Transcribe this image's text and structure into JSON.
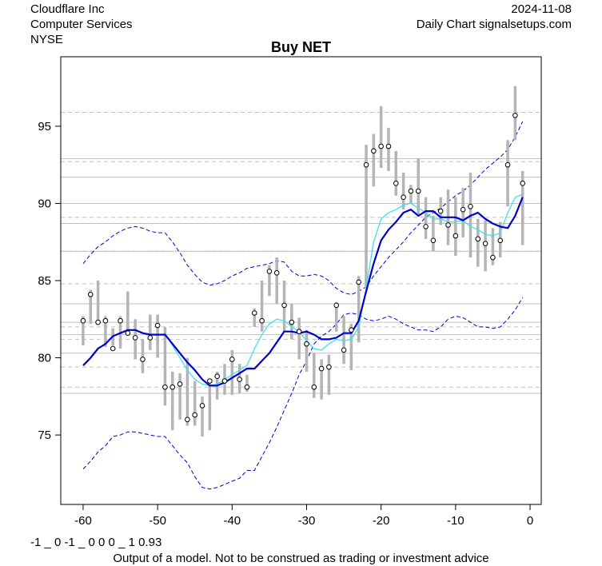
{
  "header": {
    "company": "Cloudflare Inc",
    "sector": "Computer Services",
    "exchange": "NYSE",
    "date": "2024-11-08",
    "source": "Daily Chart signalsetups.com"
  },
  "footer": {
    "code": "-1 _ 0 -1 _ 0 0 0 _ 1 0.93",
    "disclaimer": "Output of a model. Not to be construed as trading or investment advice"
  },
  "colors": {
    "bar": "#b4b4b4",
    "ma_slow": "#0000cd",
    "ma_fast": "#40e0ee",
    "band": "#0000cd",
    "grid": "#c0c0c0"
  },
  "chart_data": {
    "type": "line",
    "title": "Buy NET",
    "xlabel": "",
    "ylabel": "",
    "xlim": [
      -63,
      1.5
    ],
    "ylim": [
      70.5,
      99.5
    ],
    "x_ticks": [
      -60,
      -50,
      -40,
      -30,
      -20,
      -10,
      0
    ],
    "y_ticks": [
      75,
      80,
      85,
      90,
      95
    ],
    "h_solid": [
      77.7,
      80.3,
      81.5,
      82.3,
      83.5,
      86.9,
      88.7,
      90.0,
      91.7,
      92.9
    ],
    "h_dashed": [
      78.1,
      79.4,
      81.2,
      82.0,
      84.8,
      86.9,
      89.1,
      92.7,
      95.9
    ],
    "bars": {
      "x": [
        -60,
        -59,
        -58,
        -57,
        -56,
        -55,
        -54,
        -53,
        -52,
        -51,
        -50,
        -49,
        -48,
        -47,
        -46,
        -45,
        -44,
        -43,
        -42,
        -41,
        -40,
        -39,
        -38,
        -37,
        -36,
        -35,
        -34,
        -33,
        -32,
        -31,
        -30,
        -29,
        -28,
        -27,
        -26,
        -25,
        -24,
        -23,
        -22,
        -21,
        -20,
        -19,
        -18,
        -17,
        -16,
        -15,
        -14,
        -13,
        -12,
        -11,
        -10,
        -9,
        -8,
        -7,
        -6,
        -5,
        -4,
        -3,
        -2,
        -1
      ],
      "high": [
        82.7,
        84.4,
        85.0,
        82.7,
        81.9,
        82.7,
        84.3,
        82.5,
        81.2,
        82.8,
        82.8,
        82.0,
        79.1,
        79.0,
        80.0,
        78.5,
        77.5,
        78.6,
        79.1,
        79.6,
        80.5,
        79.6,
        78.9,
        83.2,
        85.0,
        86.0,
        86.5,
        85.0,
        83.5,
        82.6,
        81.8,
        80.3,
        79.9,
        80.2,
        83.6,
        82.7,
        82.2,
        85.3,
        93.8,
        94.5,
        96.3,
        94.9,
        93.4,
        92.0,
        91.2,
        92.9,
        90.4,
        89.2,
        90.4,
        90.9,
        90.4,
        91.0,
        92.0,
        89.0,
        88.9,
        88.4,
        88.8,
        94.1,
        97.6,
        92.1
      ],
      "low": [
        80.8,
        82.2,
        82.3,
        80.7,
        80.8,
        80.6,
        81.7,
        79.9,
        79.0,
        80.5,
        80.0,
        76.9,
        75.3,
        76.0,
        75.6,
        75.6,
        74.9,
        75.3,
        77.3,
        77.6,
        77.6,
        77.7,
        77.8,
        82.0,
        81.7,
        84.0,
        83.5,
        81.7,
        81.2,
        79.9,
        79.1,
        77.4,
        77.3,
        77.6,
        81.7,
        79.6,
        79.2,
        81.0,
        84.5,
        91.1,
        92.3,
        92.1,
        90.5,
        89.6,
        90.0,
        89.3,
        87.7,
        86.9,
        88.6,
        87.3,
        86.6,
        87.8,
        86.5,
        85.9,
        85.6,
        86.0,
        86.5,
        89.8,
        94.1,
        87.3
      ],
      "close": [
        82.4,
        84.1,
        82.3,
        82.4,
        80.6,
        82.4,
        81.6,
        81.3,
        79.9,
        81.3,
        82.1,
        78.1,
        78.1,
        78.3,
        76.0,
        76.3,
        76.9,
        78.5,
        78.8,
        78.5,
        79.9,
        78.6,
        78.1,
        82.9,
        82.4,
        85.6,
        85.5,
        83.4,
        82.3,
        81.7,
        80.9,
        78.1,
        79.3,
        79.4,
        83.4,
        80.5,
        81.8,
        84.9,
        92.5,
        93.4,
        93.7,
        93.7,
        91.3,
        90.4,
        90.8,
        90.8,
        88.5,
        87.6,
        89.5,
        88.6,
        87.9,
        89.6,
        89.8,
        87.7,
        87.4,
        86.5,
        87.6,
        92.5,
        95.7,
        91.3
      ]
    },
    "series": [
      {
        "name": "slow_ma",
        "values": [
          79.5,
          80.0,
          80.6,
          80.9,
          81.4,
          81.6,
          81.8,
          81.8,
          81.6,
          81.5,
          81.5,
          81.5,
          80.9,
          80.3,
          79.7,
          79.2,
          78.6,
          78.2,
          78.2,
          78.4,
          78.7,
          79.0,
          79.3,
          79.3,
          79.8,
          80.3,
          81.0,
          81.7,
          81.7,
          81.6,
          81.7,
          81.5,
          81.2,
          81.2,
          81.3,
          81.6,
          81.6,
          82.4,
          84.3,
          86.1,
          87.6,
          88.3,
          88.8,
          89.4,
          89.6,
          89.2,
          89.5,
          89.5,
          89.1,
          89.1,
          89.1,
          88.9,
          89.2,
          89.4,
          89.0,
          88.7,
          88.5,
          88.4,
          89.2,
          90.4
        ]
      },
      {
        "name": "fast_ma",
        "values": [
          null,
          null,
          null,
          null,
          null,
          null,
          null,
          null,
          null,
          null,
          null,
          81.6,
          80.8,
          80.0,
          79.2,
          78.6,
          78.3,
          78.2,
          78.3,
          78.6,
          78.9,
          79.2,
          79.5,
          80.6,
          81.5,
          82.2,
          82.5,
          82.4,
          82.0,
          81.7,
          81.1,
          80.6,
          80.5,
          80.9,
          81.2,
          81.1,
          81.2,
          82.0,
          84.5,
          87.5,
          89.0,
          89.4,
          89.6,
          89.9,
          90.0,
          89.7,
          89.4,
          89.0,
          89.0,
          88.8,
          88.8,
          88.9,
          88.5,
          88.3,
          88.0,
          87.9,
          88.1,
          89.4,
          90.4,
          90.6
        ]
      },
      {
        "name": "upper_band",
        "values": [
          86.1,
          86.7,
          87.2,
          87.5,
          87.9,
          88.2,
          88.4,
          88.5,
          88.4,
          88.2,
          88.1,
          88.1,
          87.5,
          86.8,
          86.0,
          85.4,
          84.9,
          84.7,
          84.8,
          85.0,
          85.3,
          85.5,
          85.8,
          85.9,
          86.0,
          86.1,
          86.3,
          86.2,
          85.6,
          85.3,
          85.3,
          85.4,
          85.3,
          85.0,
          84.5,
          84.2,
          84.1,
          84.3,
          84.6,
          85.3,
          85.9,
          86.5,
          87.0,
          87.5,
          88.1,
          88.6,
          89.1,
          89.4,
          89.7,
          90.1,
          90.5,
          90.8,
          91.2,
          91.7,
          92.2,
          92.6,
          93.0,
          93.5,
          94.3,
          95.3
        ]
      },
      {
        "name": "lower_band",
        "values": [
          72.8,
          73.3,
          73.9,
          74.3,
          74.9,
          75.0,
          75.2,
          75.2,
          75.1,
          75.0,
          74.9,
          74.9,
          74.3,
          73.7,
          73.2,
          72.3,
          71.6,
          71.5,
          71.6,
          71.8,
          72.0,
          72.2,
          72.7,
          72.7,
          73.6,
          74.5,
          75.5,
          76.6,
          77.7,
          78.9,
          79.8,
          80.9,
          81.4,
          81.7,
          82.2,
          82.8,
          82.9,
          82.8,
          82.5,
          82.4,
          82.5,
          82.7,
          82.5,
          82.2,
          82.0,
          81.8,
          81.8,
          81.7,
          82.0,
          82.5,
          82.7,
          82.6,
          82.3,
          82.0,
          82.0,
          81.9,
          82.0,
          82.5,
          83.1,
          83.9
        ]
      }
    ]
  }
}
